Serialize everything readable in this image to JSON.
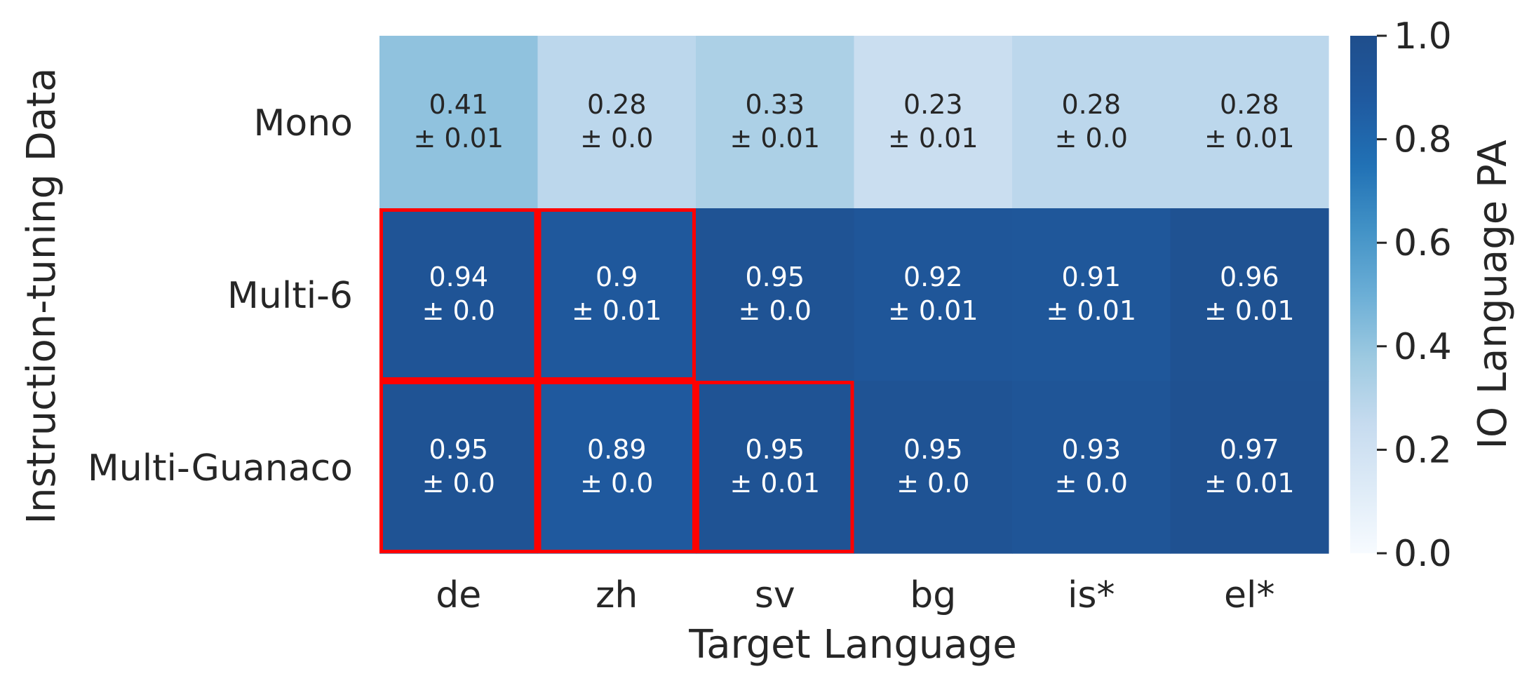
{
  "chart_data": {
    "type": "heatmap",
    "title": "",
    "xlabel": "Target Language",
    "ylabel": "Instruction-tuning Data",
    "x_categories": [
      "de",
      "zh",
      "sv",
      "bg",
      "is*",
      "el*"
    ],
    "y_categories": [
      "Mono",
      "Multi-6",
      "Multi-Guanaco"
    ],
    "values": [
      [
        0.41,
        0.28,
        0.33,
        0.23,
        0.28,
        0.28
      ],
      [
        0.94,
        0.9,
        0.95,
        0.92,
        0.91,
        0.96
      ],
      [
        0.95,
        0.89,
        0.95,
        0.95,
        0.93,
        0.97
      ]
    ],
    "cell_labels": [
      [
        [
          "0.41",
          "± 0.01"
        ],
        [
          "0.28",
          "± 0.0"
        ],
        [
          "0.33",
          "± 0.01"
        ],
        [
          "0.23",
          "± 0.01"
        ],
        [
          "0.28",
          "± 0.0"
        ],
        [
          "0.28",
          "± 0.01"
        ]
      ],
      [
        [
          "0.94",
          "± 0.0"
        ],
        [
          "0.9",
          "± 0.01"
        ],
        [
          "0.95",
          "± 0.0"
        ],
        [
          "0.92",
          "± 0.01"
        ],
        [
          "0.91",
          "± 0.01"
        ],
        [
          "0.96",
          "± 0.01"
        ]
      ],
      [
        [
          "0.95",
          "± 0.0"
        ],
        [
          "0.89",
          "± 0.0"
        ],
        [
          "0.95",
          "± 0.01"
        ],
        [
          "0.95",
          "± 0.0"
        ],
        [
          "0.93",
          "± 0.0"
        ],
        [
          "0.97",
          "± 0.01"
        ]
      ]
    ],
    "highlighted_cells": [
      [
        1,
        0
      ],
      [
        1,
        1
      ],
      [
        2,
        0
      ],
      [
        2,
        1
      ],
      [
        2,
        2
      ]
    ],
    "highlight_color": "#ff0000",
    "colorbar": {
      "label": "IO Language PA",
      "range": [
        0.0,
        1.0
      ],
      "ticks": [
        "0.0",
        "0.2",
        "0.4",
        "0.6",
        "0.8",
        "1.0"
      ],
      "colormap": "Blues",
      "color_max": "#1f4e8c"
    }
  }
}
